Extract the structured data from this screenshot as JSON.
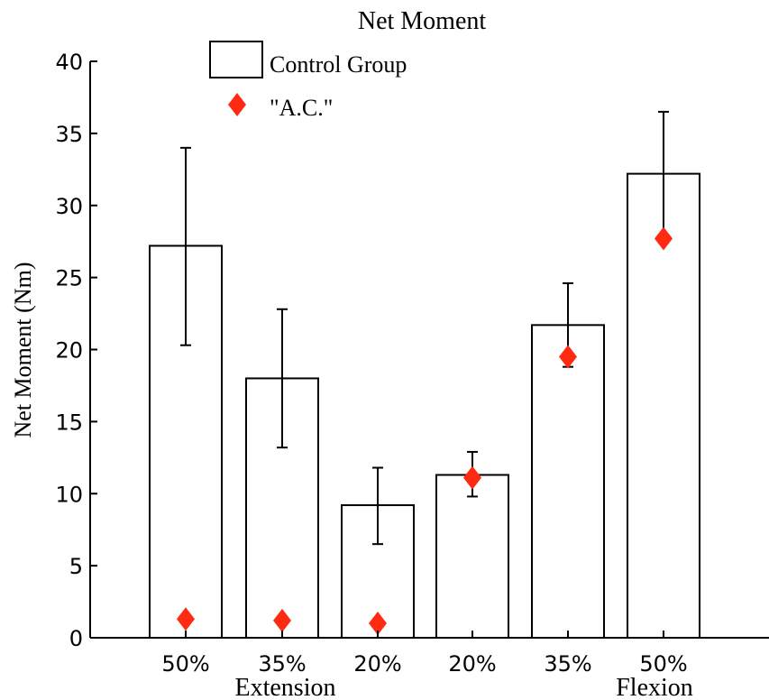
{
  "chart_data": {
    "type": "bar",
    "title": "Net Moment",
    "ylabel": "Net Moment (Nm)",
    "xlabel": "",
    "categories": [
      "50%",
      "35%",
      "20%",
      "20%",
      "35%",
      "50%"
    ],
    "groups": [
      {
        "label": "Extension",
        "category_indices": [
          0,
          1,
          2
        ]
      },
      {
        "label": "Flexion",
        "category_indices": [
          3,
          4,
          5
        ]
      }
    ],
    "ylim": [
      0,
      40
    ],
    "yticks": [
      0,
      5,
      10,
      15,
      20,
      25,
      30,
      35,
      40
    ],
    "grid": false,
    "legend_position": "top",
    "series": [
      {
        "name": "Control Group",
        "kind": "bar",
        "values": [
          27.2,
          18.0,
          9.2,
          11.3,
          21.7,
          32.2
        ],
        "error_low": [
          20.3,
          13.2,
          6.5,
          9.8,
          18.8,
          27.8
        ],
        "error_high": [
          34.0,
          22.8,
          11.8,
          12.9,
          24.6,
          36.5
        ],
        "color": "#ffffff",
        "edge_color": "#000000"
      },
      {
        "name": "\"A.C.\"",
        "kind": "marker",
        "marker": "diamond",
        "values": [
          1.3,
          1.2,
          1.0,
          11.1,
          19.5,
          27.7
        ],
        "color": "#ff2a12"
      }
    ]
  }
}
